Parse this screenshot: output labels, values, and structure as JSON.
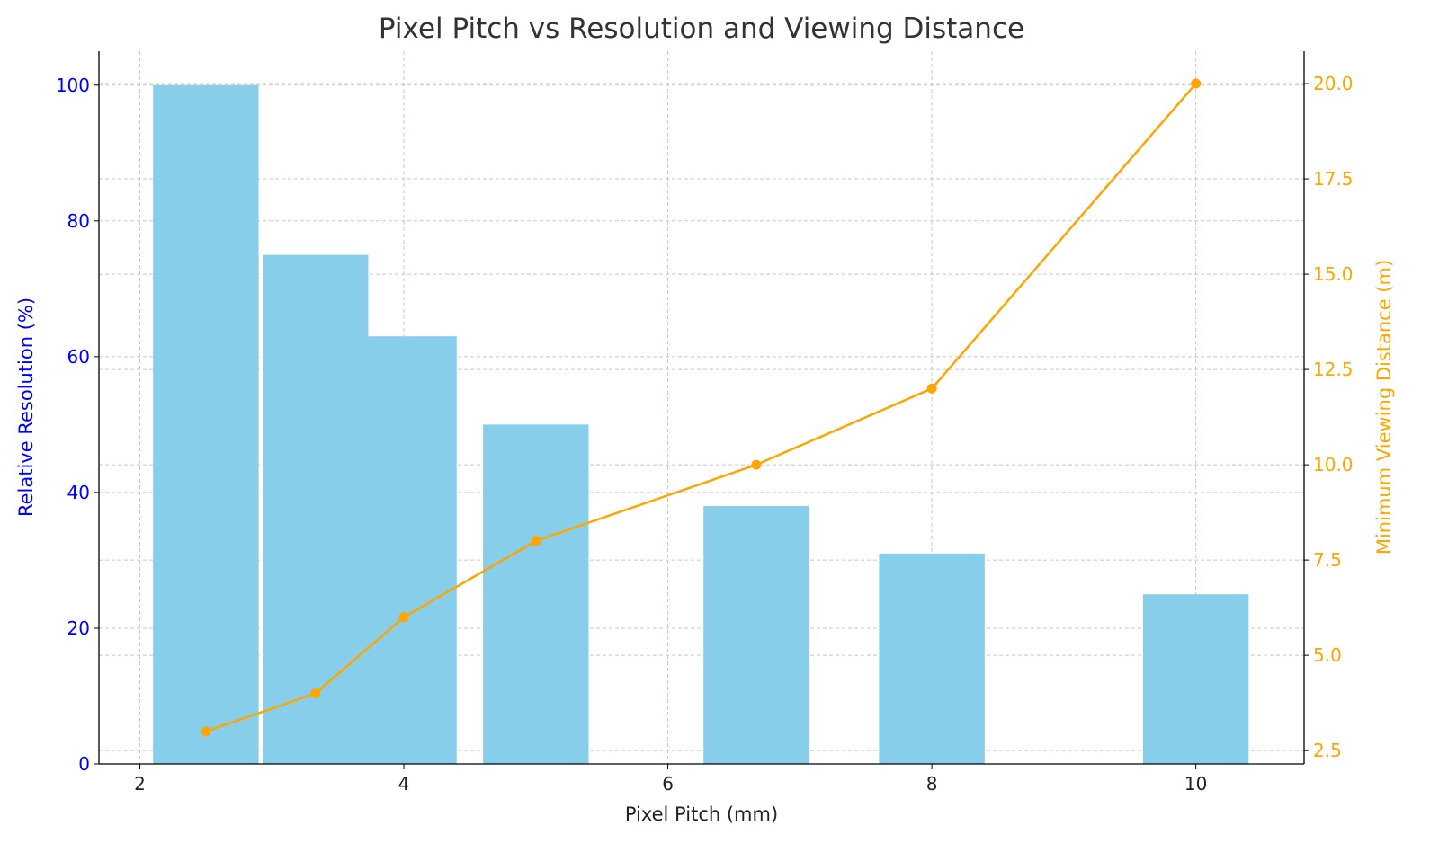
{
  "chart_data": {
    "type": "bar+line",
    "title": "Pixel Pitch vs Resolution and Viewing Distance",
    "xlabel": "Pixel Pitch (mm)",
    "ylabel_left": "Relative Resolution (%)",
    "ylabel_right": "Minimum Viewing Distance (m)",
    "xlim": [
      1.69,
      10.82
    ],
    "ylim_left": [
      0,
      105
    ],
    "ylim_right": [
      2.15,
      20.85
    ],
    "x_ticks": [
      2,
      4,
      6,
      8,
      10
    ],
    "y_ticks_left": [
      0,
      20,
      40,
      60,
      80,
      100
    ],
    "y_ticks_right": [
      "2.5",
      "5.0",
      "7.5",
      "10.0",
      "12.5",
      "15.0",
      "17.5",
      "20.0"
    ],
    "grid": true,
    "bar_width": 0.8,
    "bars": {
      "x": [
        2.5,
        3.33,
        4,
        5,
        6.67,
        8,
        10
      ],
      "values": [
        100,
        75,
        63,
        50,
        38,
        31,
        25
      ],
      "color": "#87CEEB",
      "axis": "left"
    },
    "line": {
      "x": [
        2.5,
        3.33,
        4,
        5,
        6.67,
        8,
        10
      ],
      "values": [
        3,
        4,
        6,
        8,
        10,
        12,
        20
      ],
      "color": "#FFA500",
      "marker": "circle",
      "axis": "right"
    },
    "colors": {
      "left_axis": "#0000FF",
      "right_axis": "#FFA500",
      "title": "#333333"
    }
  }
}
